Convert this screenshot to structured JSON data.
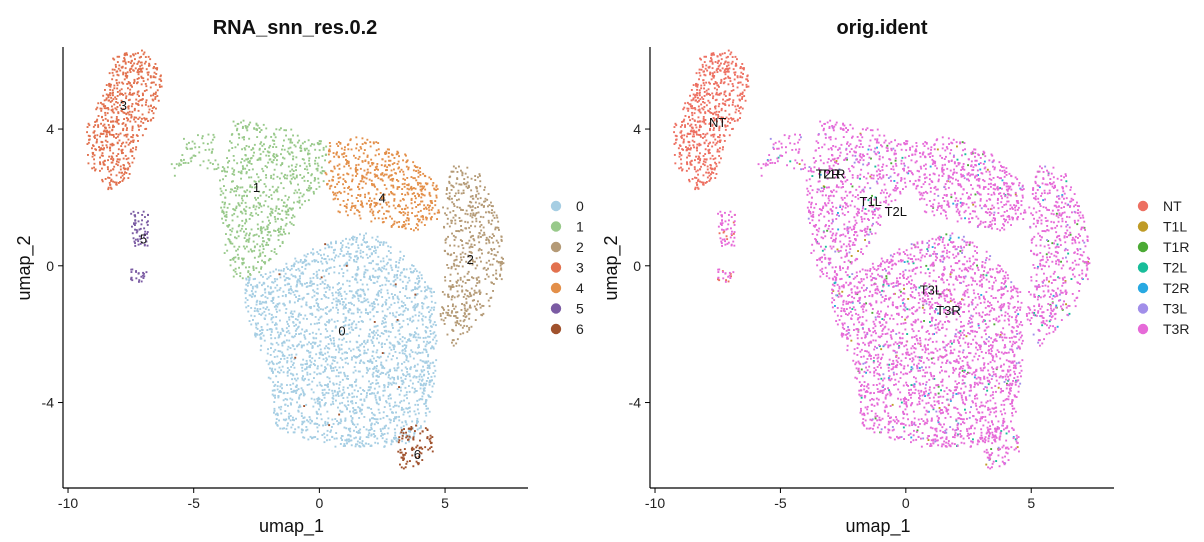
{
  "chart_data": [
    {
      "type": "scatter",
      "title": "RNA_snn_res.0.2",
      "xlabel": "umap_1",
      "ylabel": "umap_2",
      "xlim": [
        -10.2,
        8.3
      ],
      "ylim": [
        -6.5,
        6.4
      ],
      "xticks": [
        -10,
        -5,
        0,
        5
      ],
      "yticks": [
        -4,
        0,
        4
      ],
      "xtick_labels": [
        "-10",
        "-5",
        "0",
        "5"
      ],
      "ytick_labels": [
        "-4",
        "0",
        "4"
      ],
      "legend_position": "right",
      "groups": [
        {
          "name": "0",
          "color": "#a6cee3"
        },
        {
          "name": "1",
          "color": "#98c98a"
        },
        {
          "name": "2",
          "color": "#b49a76"
        },
        {
          "name": "3",
          "color": "#e2714e"
        },
        {
          "name": "4",
          "color": "#e38f49"
        },
        {
          "name": "5",
          "color": "#7b5ba3"
        },
        {
          "name": "6",
          "color": "#a0522d"
        }
      ],
      "annotations": [
        {
          "text": "0",
          "x": 0.9,
          "y": -1.9
        },
        {
          "text": "1",
          "x": -2.5,
          "y": 2.3
        },
        {
          "text": "2",
          "x": 6.0,
          "y": 0.2
        },
        {
          "text": "3",
          "x": -7.8,
          "y": 4.7
        },
        {
          "text": "4",
          "x": 2.5,
          "y": 2.0
        },
        {
          "text": "5",
          "x": -7.0,
          "y": 0.8
        },
        {
          "text": "6",
          "x": 3.9,
          "y": -5.5
        }
      ]
    },
    {
      "type": "scatter",
      "title": "orig.ident",
      "xlabel": "umap_1",
      "ylabel": "umap_2",
      "xlim": [
        -10.2,
        8.3
      ],
      "ylim": [
        -6.5,
        6.4
      ],
      "xticks": [
        -10,
        -5,
        0,
        5
      ],
      "yticks": [
        -4,
        0,
        4
      ],
      "xtick_labels": [
        "-10",
        "-5",
        "0",
        "5"
      ],
      "ytick_labels": [
        "-4",
        "0",
        "4"
      ],
      "legend_position": "right",
      "groups": [
        {
          "name": "NT",
          "color": "#ed7062"
        },
        {
          "name": "T1L",
          "color": "#bf9b26"
        },
        {
          "name": "T1R",
          "color": "#4caa35"
        },
        {
          "name": "T2L",
          "color": "#18bd9a"
        },
        {
          "name": "T2R",
          "color": "#28a9e2"
        },
        {
          "name": "T3L",
          "color": "#a18ee9"
        },
        {
          "name": "T3R",
          "color": "#e66ad8"
        }
      ],
      "annotations": [
        {
          "text": "NT",
          "x": -7.5,
          "y": 4.2
        },
        {
          "text": "T2R",
          "x": -3.1,
          "y": 2.7
        },
        {
          "text": "T1R",
          "x": -2.9,
          "y": 2.7
        },
        {
          "text": "T1L",
          "x": -1.4,
          "y": 1.9
        },
        {
          "text": "T2L",
          "x": -0.4,
          "y": 1.6
        },
        {
          "text": "T3L",
          "x": 1.0,
          "y": -0.7
        },
        {
          "text": "T3R",
          "x": 1.7,
          "y": -1.3
        }
      ]
    }
  ]
}
